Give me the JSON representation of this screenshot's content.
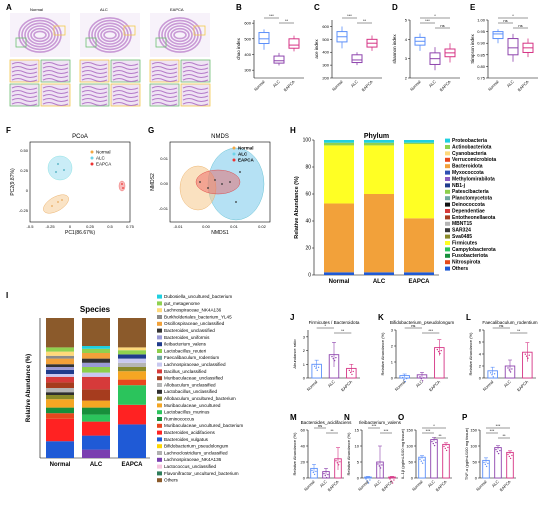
{
  "panel_letters": [
    "A",
    "B",
    "C",
    "D",
    "E",
    "F",
    "G",
    "H",
    "I",
    "J",
    "K",
    "L",
    "M",
    "N",
    "O",
    "P"
  ],
  "histology": {
    "groups": [
      "Normal",
      "ALC",
      "EAPCA"
    ],
    "tissue_color": "#c99ad6",
    "box_colors": [
      "#f2c94c",
      "#6fbf73",
      "#4aa3df"
    ]
  },
  "group_labels": [
    "Normal",
    "ALC",
    "EAPCA"
  ],
  "colors": {
    "normal": "#5b8ff9",
    "alc": "#8e44ad",
    "eapca": "#d63384"
  },
  "alpha_diversity": [
    {
      "panel": "B",
      "ylabel": "chao index",
      "yticks": [
        "300",
        "400",
        "500",
        "600"
      ],
      "sig": [
        [
          "***",
          "Normal",
          "ALC"
        ],
        [
          "**",
          "ALC",
          "EAPCA"
        ]
      ],
      "boxes": [
        [
          430,
          470,
          500,
          540,
          560
        ],
        [
          330,
          345,
          360,
          390,
          410
        ],
        [
          420,
          440,
          460,
          500,
          520
        ]
      ],
      "ylim": [
        250,
        620
      ]
    },
    {
      "panel": "C",
      "ylabel": "ace index",
      "yticks": [
        "200",
        "300",
        "400",
        "500",
        "600"
      ],
      "sig": [
        [
          "***",
          "Normal",
          "ALC"
        ],
        [
          "**",
          "ALC",
          "EAPCA"
        ]
      ],
      "boxes": [
        [
          430,
          480,
          520,
          560,
          600
        ],
        [
          300,
          320,
          340,
          380,
          400
        ],
        [
          410,
          440,
          470,
          500,
          530
        ]
      ],
      "ylim": [
        200,
        650
      ]
    },
    {
      "panel": "D",
      "ylabel": "shannon index",
      "yticks": [
        "2",
        "3",
        "4",
        "5"
      ],
      "sig": [
        [
          "*",
          "Normal",
          "EAPCA"
        ],
        [
          "***",
          "Normal",
          "ALC"
        ],
        [
          "ns",
          "ALC",
          "EAPCA"
        ]
      ],
      "boxes": [
        [
          3.4,
          3.7,
          3.9,
          4.1,
          4.3
        ],
        [
          2.4,
          2.7,
          3.0,
          3.3,
          3.6
        ],
        [
          2.8,
          3.1,
          3.3,
          3.5,
          3.8
        ]
      ],
      "ylim": [
        2,
        5
      ]
    },
    {
      "panel": "E",
      "ylabel": "Simpson index",
      "yticks": [
        "0.75",
        "0.80",
        "0.85",
        "0.90",
        "0.95",
        "1.00"
      ],
      "sig": [
        [
          "*",
          "Normal",
          "EAPCA"
        ],
        [
          "ns",
          "Normal",
          "ALC"
        ],
        [
          "ns",
          "ALC",
          "EAPCA"
        ]
      ],
      "boxes": [
        [
          0.9,
          0.92,
          0.94,
          0.95,
          0.96
        ],
        [
          0.82,
          0.85,
          0.88,
          0.92,
          0.94
        ],
        [
          0.84,
          0.86,
          0.88,
          0.9,
          0.92
        ]
      ],
      "ylim": [
        0.75,
        1.0
      ]
    }
  ],
  "pcoa": {
    "title": "PCoA",
    "xlabel": "PC1(86.67%)",
    "ylabel": "PC2(9.87%)",
    "xticks": [
      "-0.5",
      "-0.25",
      "0",
      "0.25",
      "0.5",
      "0.75"
    ],
    "yticks": [
      "-0.25",
      "0",
      "0.25",
      "0.50"
    ],
    "legend": [
      "Normal",
      "ALC",
      "EAPCA"
    ]
  },
  "nmds": {
    "title": "NMDS",
    "xlabel": "NMDS1",
    "ylabel": "NMDS2",
    "xticks": [
      "-0.01",
      "0.00",
      "0.01",
      "0.02"
    ],
    "yticks": [
      "-0.01",
      "0.00",
      "0.01"
    ],
    "legend": [
      "Normal",
      "ALC",
      "EAPCA"
    ]
  },
  "phylum": {
    "title": "Phylum",
    "ylabel": "Relative Abundance (%)",
    "yticks": [
      "0",
      "20",
      "40",
      "60",
      "80",
      "100"
    ],
    "categories": [
      "Normal",
      "ALC",
      "EAPCA"
    ],
    "legend": [
      {
        "name": "Proteobacteria",
        "color": "#1fd0e0"
      },
      {
        "name": "Actinobacteriota",
        "color": "#8fd14f"
      },
      {
        "name": "Cyanobacteria",
        "color": "#ffd97a"
      },
      {
        "name": "Verrucomicrobiota",
        "color": "#e8461e"
      },
      {
        "name": "Bacteroidota",
        "color": "#f2a13a"
      },
      {
        "name": "Myxococcota",
        "color": "#2e4fb3"
      },
      {
        "name": "Methylomirabilota",
        "color": "#8a5ac2"
      },
      {
        "name": "NB1-j",
        "color": "#1f3b8c"
      },
      {
        "name": "Patescibacteria",
        "color": "#8ccf4b"
      },
      {
        "name": "Planctomycetota",
        "color": "#6fa7a0"
      },
      {
        "name": "Deinococcota",
        "color": "#111111"
      },
      {
        "name": "Dependentiae",
        "color": "#d63a3a"
      },
      {
        "name": "Entotheonellaeota",
        "color": "#a63c1e"
      },
      {
        "name": "MBNT15",
        "color": "#b5b5b5"
      },
      {
        "name": "SAR324",
        "color": "#3a3a3a"
      },
      {
        "name": "Sva0485",
        "color": "#8a8a2a"
      },
      {
        "name": "Firmicutes",
        "color": "#ffff24"
      },
      {
        "name": "Campylobacterota",
        "color": "#2bc45c"
      },
      {
        "name": "Fusobacteriota",
        "color": "#178f3b"
      },
      {
        "name": "Nitrospirota",
        "color": "#e64a19"
      },
      {
        "name": "Others",
        "color": "#1f5ad6"
      }
    ],
    "stacks": [
      {
        "Others": 2,
        "Bacteroidota": 51,
        "Firmicutes": 43,
        "Proteobacteria": 2,
        "Actinobacteriota": 2
      },
      {
        "Others": 2,
        "Bacteroidota": 58,
        "Firmicutes": 36,
        "Proteobacteria": 2,
        "Actinobacteriota": 2
      },
      {
        "Others": 2,
        "Bacteroidota": 40,
        "Firmicutes": 55,
        "Proteobacteria": 2,
        "Actinobacteriota": 1
      }
    ]
  },
  "species": {
    "title": "Species",
    "ylabel": "Relative Abundance (%)",
    "categories": [
      "Normal",
      "ALC",
      "EAPCA"
    ],
    "legend": [
      {
        "name": "Dubosiella_uncultured_bacterium",
        "color": "#1fd0e0"
      },
      {
        "name": "gut_metagenome",
        "color": "#8fd14f"
      },
      {
        "name": "Lachnospiraceae_NK4A136",
        "color": "#ffd97a"
      },
      {
        "name": "Burkholderiales_bacterium_YL45",
        "color": "#8a8a8a"
      },
      {
        "name": "Oscillospiraceae_unclassified",
        "color": "#f2a13a"
      },
      {
        "name": "Bacteroides_unclassified",
        "color": "#333333"
      },
      {
        "name": "Bacteroides_uniformis",
        "color": "#9a9ad6"
      },
      {
        "name": "Ileibacterium_valens",
        "color": "#1f3b8c"
      },
      {
        "name": "Lactobacillus_reuteri",
        "color": "#8ccf4b"
      },
      {
        "name": "Faecalibaculum_rodentium",
        "color": "#6fa7a0"
      },
      {
        "name": "Lachnospiraceae_unclassified",
        "color": "#c8c8f0"
      },
      {
        "name": "Bacillus_unclassified",
        "color": "#d63a3a"
      },
      {
        "name": "Muribaculaceae_unclassified",
        "color": "#a63c1e"
      },
      {
        "name": "Allobaculum_unclassified",
        "color": "#b5b5b5"
      },
      {
        "name": "Lactobacillus_unclassified",
        "color": "#2e2e2e"
      },
      {
        "name": "Allobaculum_uncultured_bacterium",
        "color": "#8a8a2a"
      },
      {
        "name": "Muribaculaceae_uncultured",
        "color": "#f5a623"
      },
      {
        "name": "Lactobacillus_murinus",
        "color": "#2bc45c"
      },
      {
        "name": "Ruminococcus",
        "color": "#178f3b"
      },
      {
        "name": "Muribaculaceae_uncultured_bacterium",
        "color": "#e8461e"
      },
      {
        "name": "Bacteroides_acidifaciens",
        "color": "#ff2222"
      },
      {
        "name": "Bacteroides_vulgatus",
        "color": "#1f5ad6"
      },
      {
        "name": "Bifidobacterium_pseudolongum",
        "color": "#ffd700"
      },
      {
        "name": "Lachnoclostridium_unclassified",
        "color": "#b0b0b0"
      },
      {
        "name": "Lachnospiraceae_NK4A136",
        "color": "#7a3fb0"
      },
      {
        "name": "Lactococcus_unclassified",
        "color": "#f7c6e0"
      },
      {
        "name": "Flavonifractor_uncultured_bacterium",
        "color": "#2e7d5b"
      },
      {
        "name": "Others",
        "color": "#8b5a2b"
      }
    ],
    "stacks": [
      [
        [
          "#1f5ad6",
          12
        ],
        [
          "#ff2222",
          16
        ],
        [
          "#e8461e",
          4
        ],
        [
          "#178f3b",
          4
        ],
        [
          "#f5a623",
          6
        ],
        [
          "#8a8a2a",
          3
        ],
        [
          "#2e2e2e",
          2
        ],
        [
          "#b5b5b5",
          3
        ],
        [
          "#a63c1e",
          4
        ],
        [
          "#d63a3a",
          4
        ],
        [
          "#c8c8f0",
          2
        ],
        [
          "#1f3b8c",
          3
        ],
        [
          "#9a9ad6",
          2
        ],
        [
          "#333333",
          2
        ],
        [
          "#f2a13a",
          4
        ],
        [
          "#8a8a8a",
          2
        ],
        [
          "#ffd97a",
          3
        ],
        [
          "#8fd14f",
          3
        ],
        [
          "#8b5a2b",
          21
        ]
      ],
      [
        [
          "#7a3fb0",
          6
        ],
        [
          "#1f5ad6",
          10
        ],
        [
          "#ff2222",
          10
        ],
        [
          "#2bc45c",
          5
        ],
        [
          "#178f3b",
          5
        ],
        [
          "#f5a623",
          5
        ],
        [
          "#a63c1e",
          8
        ],
        [
          "#d63a3a",
          9
        ],
        [
          "#c8c8f0",
          3
        ],
        [
          "#8ccf4b",
          4
        ],
        [
          "#9a9ad6",
          3
        ],
        [
          "#333333",
          3
        ],
        [
          "#f2a13a",
          4
        ],
        [
          "#8fd14f",
          3
        ],
        [
          "#1fd0e0",
          2
        ],
        [
          "#8b5a2b",
          20
        ]
      ],
      [
        [
          "#1f5ad6",
          24
        ],
        [
          "#ff2222",
          14
        ],
        [
          "#2bc45c",
          14
        ],
        [
          "#e8461e",
          4
        ],
        [
          "#f5a623",
          6
        ],
        [
          "#8a8a2a",
          3
        ],
        [
          "#b5b5b5",
          3
        ],
        [
          "#c8c8f0",
          3
        ],
        [
          "#1f3b8c",
          3
        ],
        [
          "#8fd14f",
          3
        ],
        [
          "#ffd97a",
          2
        ],
        [
          "#8b5a2b",
          21
        ]
      ]
    ]
  },
  "taxa_panels": [
    {
      "panel": "J",
      "title": "Firmicutes / Bacteroidota",
      "ylabel": "Abundance ratio",
      "yticks": [
        "0",
        "1",
        "2",
        "3"
      ],
      "ymax": 3.5,
      "values": [
        1.0,
        1.7,
        0.7
      ],
      "errors": [
        0.3,
        0.9,
        0.3
      ],
      "sig": [
        [
          "*",
          "Normal",
          "ALC"
        ],
        [
          "**",
          "ALC",
          "EAPCA"
        ]
      ]
    },
    {
      "panel": "K",
      "title": "Bifidobacterium_pseudolongum",
      "ylabel": "Relative Abundance (%)",
      "yticks": [
        "0",
        "1",
        "2",
        "3"
      ],
      "ymax": 3,
      "values": [
        0.15,
        0.2,
        1.9
      ],
      "errors": [
        0.1,
        0.15,
        0.5
      ],
      "sig": [
        [
          "ns",
          "Normal",
          "ALC"
        ],
        [
          "***",
          "ALC",
          "EAPCA"
        ]
      ]
    },
    {
      "panel": "L",
      "title": "Faecalibaculum_rodentium",
      "ylabel": "Relative Abundance (%)",
      "yticks": [
        "0",
        "2",
        "4",
        "6",
        "8"
      ],
      "ymax": 8,
      "values": [
        1.2,
        2.0,
        4.3
      ],
      "errors": [
        0.6,
        1.0,
        1.6
      ],
      "sig": [
        [
          "ns",
          "Normal",
          "ALC"
        ],
        [
          "**",
          "ALC",
          "EAPCA"
        ]
      ]
    },
    {
      "panel": "M",
      "title": "Bacteroides_acidifaciens",
      "ylabel": "Relative Abundance (%)",
      "yticks": [
        "0",
        "20",
        "40",
        "60"
      ],
      "ymax": 60,
      "values": [
        12,
        8,
        24
      ],
      "errors": [
        5,
        4,
        14
      ],
      "sig": [
        [
          "ns",
          "Normal",
          "ALC"
        ],
        [
          "**",
          "ALC",
          "EAPCA"
        ]
      ]
    },
    {
      "panel": "N",
      "title": "Ileibacterium_valens",
      "ylabel": "Relative Abundance (%)",
      "yticks": [
        "0",
        "5",
        "10",
        "15"
      ],
      "ymax": 15,
      "values": [
        0.3,
        5,
        0.3
      ],
      "errors": [
        0.2,
        5,
        0.2
      ],
      "sig": [
        [
          "***",
          "Normal",
          "ALC"
        ],
        [
          "***",
          "ALC",
          "EAPCA"
        ]
      ]
    },
    {
      "panel": "O",
      "title": "",
      "ylabel": "IL-1β (pg/mL/100 mg tissue)",
      "yticks": [
        "0",
        "50",
        "100",
        "150"
      ],
      "ymax": 150,
      "values": [
        65,
        120,
        105
      ],
      "errors": [
        5,
        6,
        5
      ],
      "sig": [
        [
          "*",
          "Normal",
          "EAPCA"
        ],
        [
          "***",
          "Normal",
          "ALC"
        ],
        [
          "**",
          "ALC",
          "EAPCA"
        ]
      ]
    },
    {
      "panel": "P",
      "title": "",
      "ylabel": "TNF-α (pg/mL/100 mg tissue)",
      "yticks": [
        "0",
        "50",
        "100",
        "150"
      ],
      "ymax": 150,
      "values": [
        55,
        95,
        80
      ],
      "errors": [
        8,
        6,
        5
      ],
      "sig": [
        [
          "***",
          "Normal",
          "EAPCA"
        ],
        [
          "***",
          "Normal",
          "ALC"
        ],
        [
          "**",
          "ALC",
          "EAPCA"
        ]
      ]
    }
  ]
}
